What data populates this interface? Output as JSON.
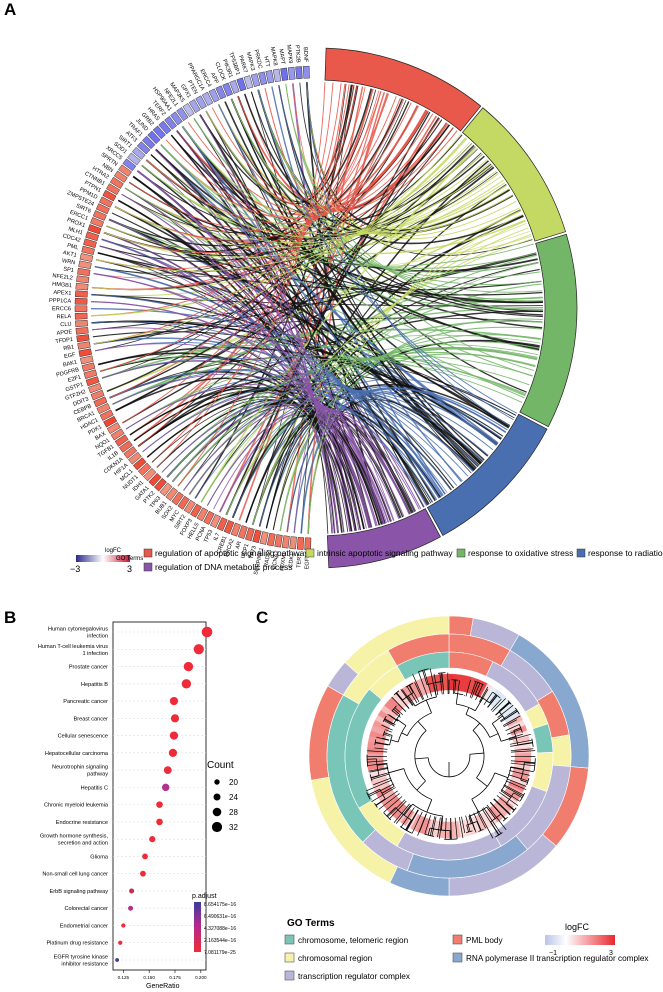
{
  "panels": {
    "a": "A",
    "b": "B",
    "c": "C"
  },
  "colors": {
    "apoptotic": "#e8584b",
    "intrinsic": "#c4d964",
    "oxidative": "#74b668",
    "radiation": "#4a6fb0",
    "dna": "#8a55a8",
    "go_telomeric": "#79c6b8",
    "go_chromosomal": "#f6f2a8",
    "go_trc": "#b9b6d8",
    "go_pml": "#f07d6e",
    "go_rnap": "#89a8cf"
  },
  "legend_a": {
    "logfc_title": "logFC",
    "logfc_min": "−3",
    "logfc_max": "3",
    "go_title": "GO Terms",
    "terms": [
      {
        "label": "regulation of apoptotic signaling pathway",
        "color": "#e8584b"
      },
      {
        "label": "intrinsic apoptotic signaling pathway",
        "color": "#c4d964"
      },
      {
        "label": "response to oxidative stress",
        "color": "#74b668"
      },
      {
        "label": "response to radiation",
        "color": "#4a6fb0"
      },
      {
        "label": "regulation of DNA metabolic process",
        "color": "#8a55a8"
      }
    ]
  },
  "genes": [
    "EGFR",
    "TERT",
    "CDK1",
    "FOXM1",
    "CCNA2",
    "RAD51",
    "SERPINE1",
    "TP73",
    "UCP1",
    "AR",
    "BRCA2",
    "CREB1",
    "IL7",
    "TP53",
    "PCNA",
    "HELLS",
    "FOXP3",
    "SIRT2",
    "MYC",
    "SOX2",
    "BUB1",
    "TP63",
    "PTK2",
    "GATA1",
    "IDH1",
    "NUDT1",
    "MCL1",
    "HIF1A",
    "CDKN1A",
    "IL1B",
    "TGFB1",
    "NQO1",
    "BAX",
    "PDK1",
    "HDAC1",
    "BRCA1",
    "CEBPB",
    "DDIT3",
    "GTF2H2",
    "GSTP1",
    "E2F1",
    "PDGFRB",
    "BAK1",
    "EGF",
    "RB1",
    "TFDP1",
    "APOE",
    "CLU",
    "RELA",
    "ERCC6",
    "PPP1CA",
    "APEX1",
    "HMGB1",
    "NFE2L2",
    "SP1",
    "WRN",
    "AKT1",
    "PML",
    "CDC42",
    "MLH1",
    "PROX1",
    "ERCC1",
    "SIRT6",
    "ZMPSTE24",
    "PPM1D",
    "PTPN1",
    "CTNNB1",
    "HTRA2",
    "NBN",
    "SPRTN",
    "XRCC5",
    "SOD1",
    "SIRT1",
    "ATF3",
    "TRAF1",
    "JUND",
    "GRB2",
    "HRAS",
    "TERF2",
    "HSP90AA1",
    "NFE2L1",
    "MAP3K5",
    "GPX1",
    "PTEN",
    "PPARGC1A",
    "ERCC4",
    "APP",
    "CLOCK",
    "PIK3R1",
    "TP53BP1",
    "PARK7",
    "MAPK3",
    "PRKDC",
    "HTT",
    "MAPK8",
    "MAPT",
    "MAPK9",
    "PTK2B",
    "BDNF"
  ],
  "chart_data": [
    {
      "type": "chord",
      "title": "",
      "categories": [
        "regulation of apoptotic signaling pathway",
        "intrinsic apoptotic signaling pathway",
        "response to oxidative stress",
        "response to radiation",
        "regulation of DNA metabolic process"
      ],
      "values": [
        40,
        36,
        47,
        36,
        28
      ],
      "logfc_range": [
        -3,
        3
      ]
    },
    {
      "type": "scatter",
      "title": "",
      "xlabel": "GeneRatio",
      "ylabel": "",
      "xlim": [
        0.115,
        0.205
      ],
      "xticks": [
        0.125,
        0.15,
        0.175,
        0.2
      ],
      "xtick_labels": [
        "0.125",
        "0.150",
        "0.175",
        "0.200"
      ],
      "categories": [
        "Human cytomegalovirus infection",
        "Human T-cell leukemia virus 1 infection",
        "Prostate cancer",
        "Hepatitis B",
        "Pancreatic cancer",
        "Breast cancer",
        "Cellular senescence",
        "Hepatocellular carcinoma",
        "Neurotrophin signaling pathway",
        "Hepatitis C",
        "Chronic myeloid leukemia",
        "Endocrine resistance",
        "Growth hormone synthesis, secretion and action",
        "Glioma",
        "Non-small cell lung cancer",
        "ErbB signaling pathway",
        "Colorectal cancer",
        "Endometrial cancer",
        "Platinum drug resistance",
        "EGFR tyrosine kinase inhibitor resistance"
      ],
      "x": [
        0.206,
        0.198,
        0.188,
        0.186,
        0.174,
        0.175,
        0.174,
        0.173,
        0.168,
        0.166,
        0.16,
        0.16,
        0.153,
        0.146,
        0.144,
        0.133,
        0.132,
        0.125,
        0.122,
        0.119
      ],
      "counts": [
        33,
        32,
        30,
        30,
        27,
        27,
        27,
        27,
        26,
        25,
        23,
        23,
        22,
        21,
        21,
        19,
        19,
        17,
        17,
        16
      ],
      "p_adjust": [
        7.1e-25,
        7.1e-25,
        7.1e-25,
        7.1e-25,
        7.1e-25,
        7.1e-25,
        7.1e-25,
        7.1e-25,
        1.5e-17,
        4.3e-16,
        7.1e-25,
        7.1e-25,
        7.1e-25,
        7.1e-25,
        7.1e-25,
        2e-16,
        3e-16,
        7.1e-25,
        7.1e-25,
        8.6e-16
      ],
      "legend_count_title": "Count",
      "legend_counts": [
        "20",
        "24",
        "28",
        "32"
      ],
      "legend_count_values": [
        20,
        24,
        28,
        32
      ],
      "legend_p_title": "p.adjust",
      "legend_p_labels": [
        "8.654175e−16",
        "6.490631e−16",
        "4.327088e−16",
        "2.163544e−16",
        "7.081179e−25"
      ]
    },
    {
      "type": "heatmap",
      "title": "",
      "legend_go_title": "GO Terms",
      "legend_logfc_title": "logFC",
      "logfc_min": "−1",
      "logfc_max": "3",
      "go_terms": [
        {
          "label": "chromosome, telomeric region",
          "color": "#79c6b8"
        },
        {
          "label": "PML body",
          "color": "#f07d6e"
        },
        {
          "label": "chromosomal region",
          "color": "#f6f2a8"
        },
        {
          "label": "RNA polymerase II transcription regulator complex",
          "color": "#89a8cf"
        },
        {
          "label": "transcription regulator complex",
          "color": "#b9b6d8"
        }
      ]
    }
  ]
}
